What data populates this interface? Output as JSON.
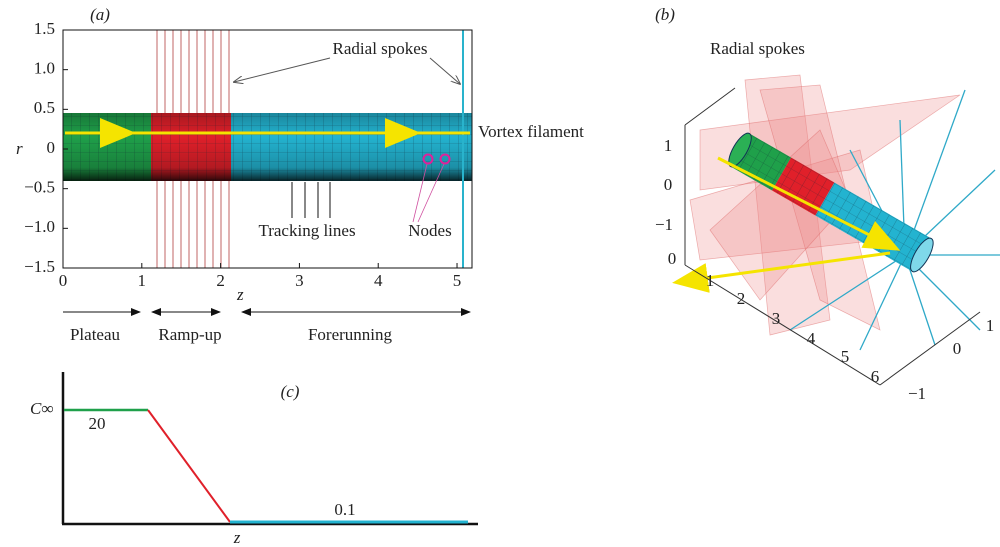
{
  "panel_a": {
    "label": "(a)",
    "xlabel": "z",
    "ylabel": "r",
    "xlim": [
      0,
      5.19
    ],
    "ylim": [
      -1.5,
      1.5
    ],
    "xticks": [
      0,
      1,
      2,
      3,
      4,
      5
    ],
    "yticks": [
      {
        "value": -1.5,
        "label": "−1.5"
      },
      {
        "value": -1,
        "label": "−1.0"
      },
      {
        "value": -0.5,
        "label": "−0.5"
      },
      0,
      0.5,
      {
        "value": 1,
        "label": "1.0"
      },
      1.5
    ],
    "annotations": {
      "spokes": "Radial spokes",
      "filament": "Vortex filament",
      "tracking": "Tracking lines",
      "nodes": "Nodes"
    },
    "regions": [
      "Plateau",
      "Ramp-up",
      "Forerunning"
    ]
  },
  "panel_b": {
    "label": "(b)",
    "annotation": "Radial spokes",
    "vertical_ticks": [
      1,
      0,
      {
        "value": -1,
        "label": "−1"
      }
    ],
    "z_ticks": [
      0,
      1,
      2,
      3,
      4,
      5,
      6
    ],
    "depth_ticks": [
      {
        "value": -1,
        "label": "−1"
      },
      0,
      1
    ]
  },
  "panel_c": {
    "label": "(c)",
    "ylabel": "C∞",
    "xlabel": "z",
    "levels": [
      "20",
      "0.1"
    ]
  }
}
